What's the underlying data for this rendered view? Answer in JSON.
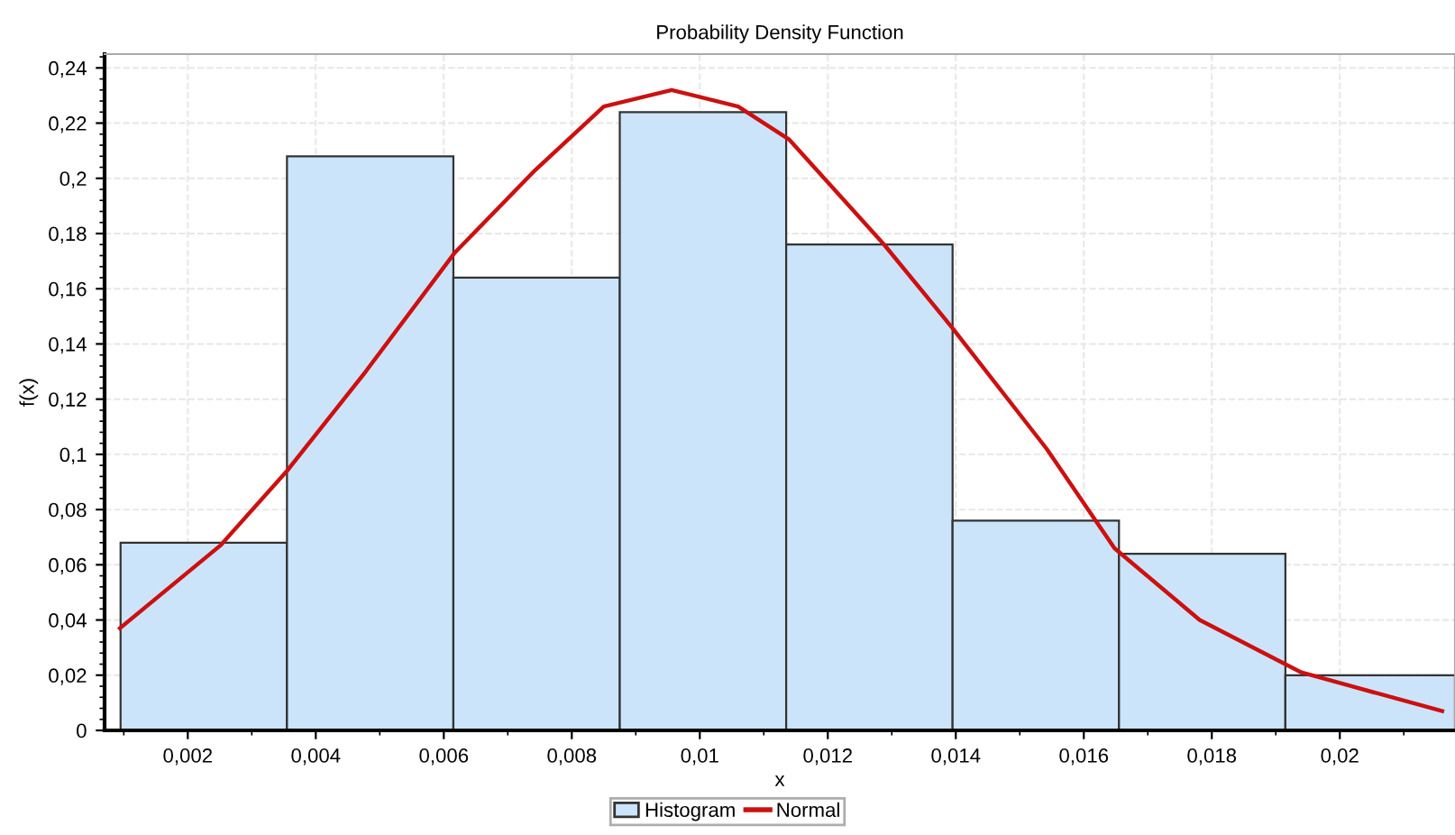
{
  "chart_data": {
    "type": "histogram",
    "title": "Probability Density Function",
    "xlabel": "x",
    "ylabel": "f(x)",
    "series": [
      {
        "name": "Histogram",
        "color": "#cce4fa",
        "bins": [
          0.00095,
          0.00355,
          0.00615,
          0.00875,
          0.01135,
          0.01395,
          0.01655,
          0.01915,
          0.0218
        ],
        "values": [
          0.068,
          0.208,
          0.164,
          0.224,
          0.176,
          0.076,
          0.064,
          0.02
        ]
      },
      {
        "name": "Normal",
        "type": "line",
        "color": "#cc1010",
        "x": [
          0.00094,
          0.00251,
          0.00355,
          0.00478,
          0.00617,
          0.00743,
          0.0085,
          0.00956,
          0.0106,
          0.0114,
          0.01288,
          0.01394,
          0.01542,
          0.01648,
          0.01781,
          0.0194,
          0.0216
        ],
        "values": [
          0.037,
          0.067,
          0.094,
          0.13,
          0.173,
          0.203,
          0.226,
          0.232,
          0.226,
          0.214,
          0.176,
          0.146,
          0.102,
          0.066,
          0.04,
          0.021,
          0.007
        ]
      }
    ],
    "xlim": [
      0.0007,
      0.0218
    ],
    "ylim": [
      0,
      0.245
    ],
    "xticks": [
      {
        "value": 0.002,
        "label": "0,002"
      },
      {
        "value": 0.004,
        "label": "0,004"
      },
      {
        "value": 0.006,
        "label": "0,006"
      },
      {
        "value": 0.008,
        "label": "0,008"
      },
      {
        "value": 0.01,
        "label": "0,01"
      },
      {
        "value": 0.012,
        "label": "0,012"
      },
      {
        "value": 0.014,
        "label": "0,014"
      },
      {
        "value": 0.016,
        "label": "0,016"
      },
      {
        "value": 0.018,
        "label": "0,018"
      },
      {
        "value": 0.02,
        "label": "0,02"
      }
    ],
    "yticks": [
      0,
      {
        "value": 0.02,
        "label": "0,02"
      },
      {
        "value": 0.04,
        "label": "0,04"
      },
      {
        "value": 0.06,
        "label": "0,06"
      },
      {
        "value": 0.08,
        "label": "0,08"
      },
      {
        "value": 0.1,
        "label": "0,1"
      },
      {
        "value": 0.12,
        "label": "0,12"
      },
      {
        "value": 0.14,
        "label": "0,14"
      },
      {
        "value": 0.16,
        "label": "0,16"
      },
      {
        "value": 0.18,
        "label": "0,18"
      },
      {
        "value": 0.2,
        "label": "0,2"
      },
      {
        "value": 0.22,
        "label": "0,22"
      },
      {
        "value": 0.24,
        "label": "0,24"
      }
    ],
    "grid": true,
    "legend": "bottom"
  }
}
